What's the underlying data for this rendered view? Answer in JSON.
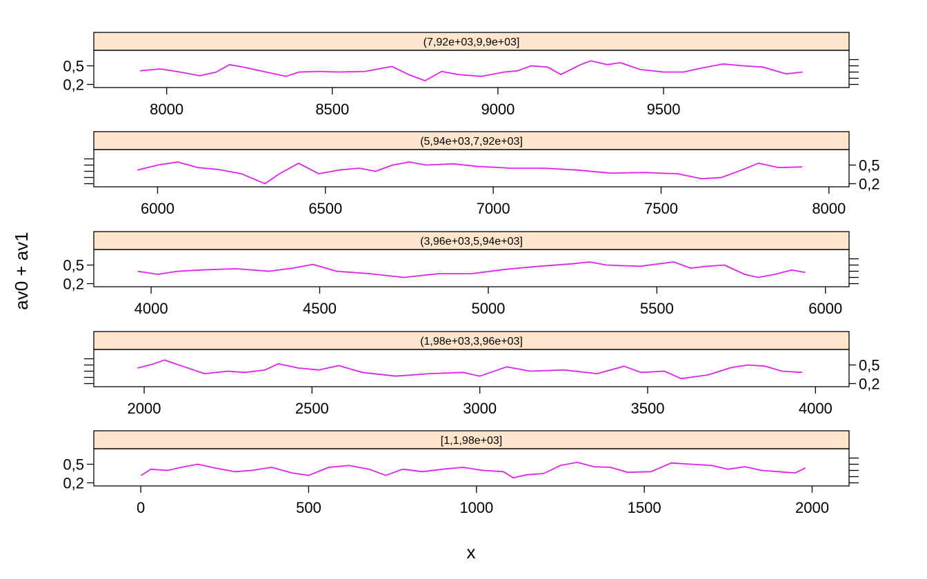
{
  "chart_data": {
    "type": "line",
    "layout": "lattice",
    "xlabel": "x",
    "ylabel": "av0 + av1",
    "colors": {
      "line": "#e020f0",
      "strip_fill": "#ffe5cc",
      "frame": "#000000"
    },
    "yticks": [
      0.2,
      0.5
    ],
    "ytick_labels": [
      "0,2",
      "0,5"
    ],
    "ylim": [
      0.15,
      0.75
    ],
    "panels": [
      {
        "strip_label": "(7,92e+03,9,9e+03]",
        "xlim": [
          7780,
          10060
        ],
        "xticks": [
          8000,
          8500,
          9000,
          9500
        ],
        "x": [
          7920,
          7980,
          8040,
          8100,
          8150,
          8190,
          8230,
          8300,
          8360,
          8400,
          8460,
          8520,
          8600,
          8680,
          8730,
          8780,
          8830,
          8880,
          8950,
          9020,
          9060,
          9100,
          9150,
          9190,
          9250,
          9280,
          9330,
          9370,
          9430,
          9500,
          9560,
          9620,
          9680,
          9740,
          9800,
          9870,
          9920
        ],
        "y": [
          0.42,
          0.45,
          0.4,
          0.34,
          0.4,
          0.52,
          0.48,
          0.4,
          0.33,
          0.4,
          0.41,
          0.4,
          0.41,
          0.49,
          0.36,
          0.26,
          0.41,
          0.36,
          0.33,
          0.4,
          0.42,
          0.5,
          0.48,
          0.36,
          0.52,
          0.58,
          0.52,
          0.55,
          0.44,
          0.4,
          0.4,
          0.47,
          0.53,
          0.5,
          0.48,
          0.37,
          0.4
        ]
      },
      {
        "strip_label": "(5,94e+03,7,92e+03]",
        "xlim": [
          5810,
          8060
        ],
        "xticks": [
          6000,
          6500,
          7000,
          7500,
          8000
        ],
        "x": [
          5940,
          6000,
          6060,
          6120,
          6180,
          6250,
          6320,
          6360,
          6420,
          6480,
          6540,
          6600,
          6650,
          6700,
          6750,
          6800,
          6880,
          6950,
          7050,
          7150,
          7250,
          7350,
          7450,
          7550,
          7620,
          7680,
          7740,
          7790,
          7850,
          7920
        ],
        "y": [
          0.42,
          0.5,
          0.55,
          0.46,
          0.43,
          0.36,
          0.2,
          0.35,
          0.53,
          0.36,
          0.42,
          0.45,
          0.4,
          0.5,
          0.55,
          0.5,
          0.52,
          0.48,
          0.45,
          0.45,
          0.42,
          0.37,
          0.38,
          0.36,
          0.28,
          0.3,
          0.42,
          0.53,
          0.46,
          0.47
        ]
      },
      {
        "strip_label": "(3,96e+03,5,94e+03]",
        "xlim": [
          3830,
          6070
        ],
        "xticks": [
          4000,
          4500,
          5000,
          5500,
          6000
        ],
        "x": [
          3960,
          4020,
          4080,
          4150,
          4250,
          4350,
          4420,
          4480,
          4550,
          4650,
          4750,
          4850,
          4950,
          5050,
          5150,
          5250,
          5300,
          5350,
          5450,
          5550,
          5600,
          5650,
          5700,
          5760,
          5800,
          5850,
          5900,
          5940
        ],
        "y": [
          0.4,
          0.35,
          0.4,
          0.42,
          0.44,
          0.4,
          0.45,
          0.51,
          0.4,
          0.36,
          0.3,
          0.36,
          0.36,
          0.43,
          0.48,
          0.52,
          0.55,
          0.5,
          0.48,
          0.55,
          0.45,
          0.48,
          0.5,
          0.35,
          0.3,
          0.35,
          0.42,
          0.38
        ]
      },
      {
        "strip_label": "(1,98e+03,3,96e+03]",
        "xlim": [
          1850,
          4100
        ],
        "xticks": [
          2000,
          2500,
          3000,
          3500,
          4000
        ],
        "x": [
          1980,
          2030,
          2060,
          2120,
          2180,
          2250,
          2300,
          2360,
          2400,
          2460,
          2520,
          2580,
          2650,
          2750,
          2850,
          2950,
          3000,
          3080,
          3150,
          3250,
          3350,
          3430,
          3480,
          3550,
          3600,
          3680,
          3750,
          3800,
          3850,
          3900,
          3960
        ],
        "y": [
          0.45,
          0.52,
          0.58,
          0.47,
          0.36,
          0.4,
          0.38,
          0.42,
          0.52,
          0.45,
          0.42,
          0.49,
          0.38,
          0.32,
          0.36,
          0.38,
          0.32,
          0.47,
          0.4,
          0.42,
          0.36,
          0.48,
          0.38,
          0.4,
          0.28,
          0.34,
          0.46,
          0.5,
          0.48,
          0.4,
          0.38
        ]
      },
      {
        "strip_label": "[1,1,98e+03]",
        "xlim": [
          -140,
          2110
        ],
        "xticks": [
          0,
          500,
          1000,
          1500,
          2000
        ],
        "x": [
          1,
          30,
          80,
          120,
          170,
          220,
          280,
          330,
          390,
          450,
          500,
          560,
          620,
          680,
          730,
          780,
          840,
          900,
          960,
          1020,
          1080,
          1110,
          1150,
          1200,
          1250,
          1300,
          1350,
          1400,
          1450,
          1520,
          1580,
          1640,
          1700,
          1750,
          1800,
          1850,
          1900,
          1950,
          1980
        ],
        "y": [
          0.32,
          0.42,
          0.4,
          0.45,
          0.5,
          0.44,
          0.38,
          0.4,
          0.45,
          0.36,
          0.32,
          0.45,
          0.48,
          0.42,
          0.32,
          0.42,
          0.38,
          0.42,
          0.45,
          0.4,
          0.38,
          0.28,
          0.33,
          0.35,
          0.48,
          0.53,
          0.46,
          0.45,
          0.37,
          0.38,
          0.52,
          0.5,
          0.48,
          0.42,
          0.46,
          0.4,
          0.38,
          0.36,
          0.44
        ]
      }
    ]
  }
}
